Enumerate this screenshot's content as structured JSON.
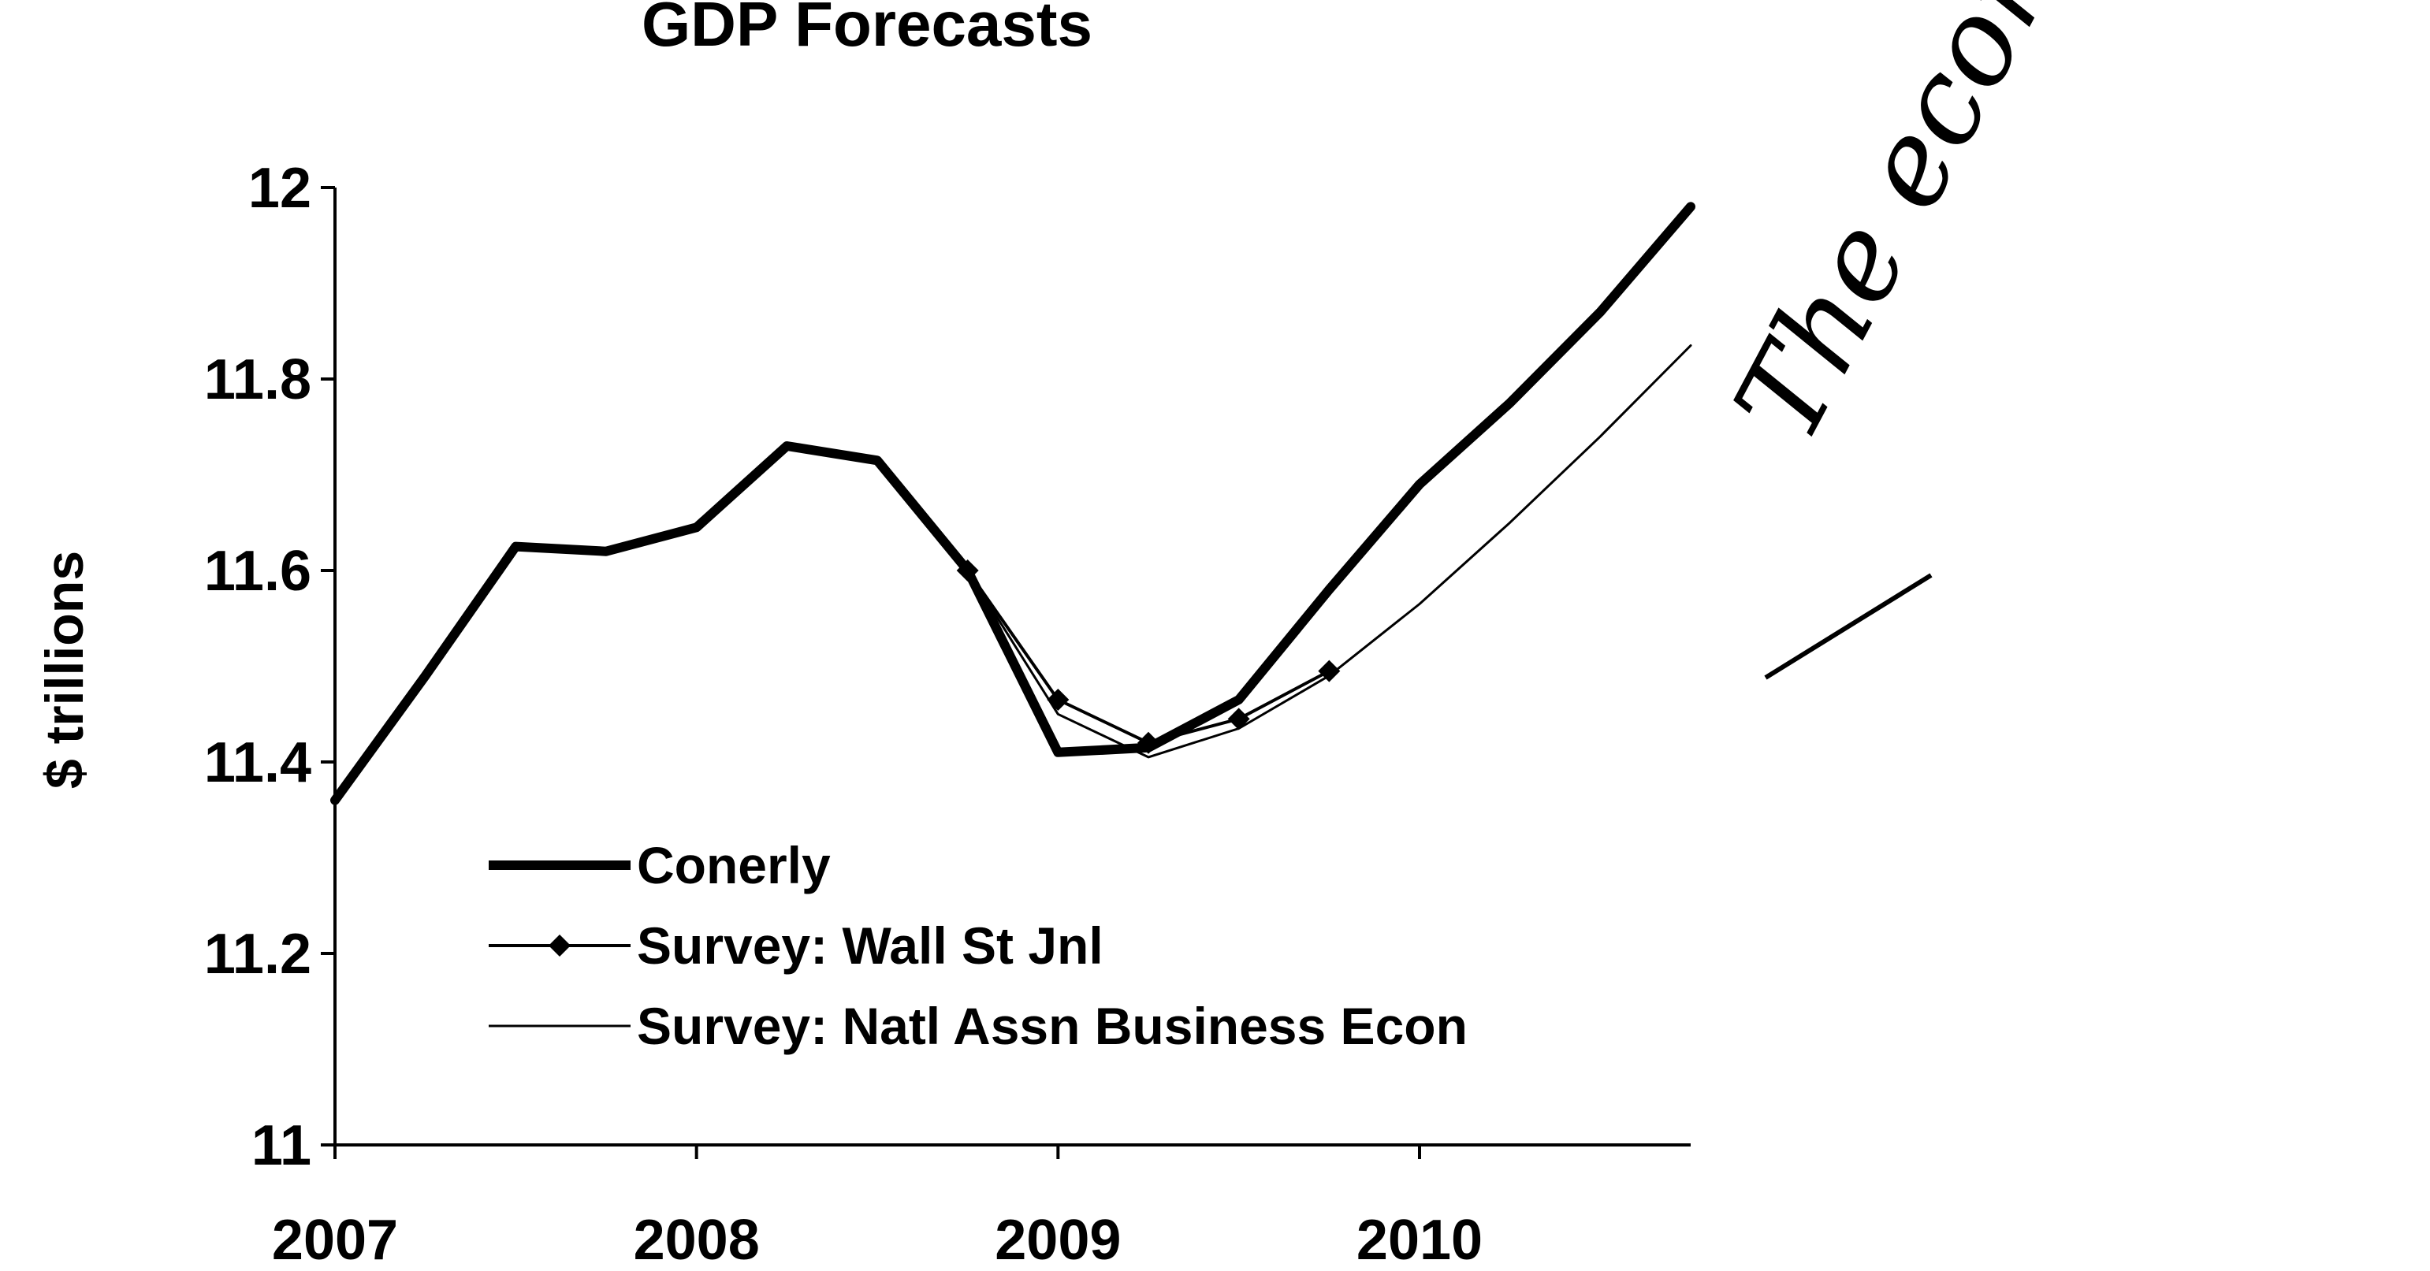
{
  "chart_data": {
    "type": "line",
    "title": "GDP Forecasts",
    "ylabel": "$ trillions",
    "xlabel": "",
    "ylim": [
      11,
      12
    ],
    "yticks": [
      "12",
      "11.8",
      "11.6",
      "11.4",
      "11.2",
      "11"
    ],
    "xticks": [
      "2007",
      "2008",
      "2009",
      "2010"
    ],
    "xlim": [
      2007,
      2010.75
    ],
    "grid": false,
    "legend_position": "lower-left",
    "series": [
      {
        "name": "Conerly",
        "style": "thick",
        "x": [
          2007,
          2007.25,
          2007.5,
          2007.75,
          2008,
          2008.25,
          2008.5,
          2008.75,
          2009,
          2009.25,
          2009.5,
          2009.75,
          2010,
          2010.25,
          2010.5,
          2010.75
        ],
        "y": [
          11.36,
          11.49,
          11.625,
          11.62,
          11.645,
          11.73,
          11.715,
          11.6,
          11.41,
          11.415,
          11.465,
          11.58,
          11.69,
          11.775,
          11.87,
          11.98
        ]
      },
      {
        "name": "Survey: Wall St Jnl",
        "style": "marker",
        "x": [
          2008.75,
          2009,
          2009.25,
          2009.5,
          2009.75
        ],
        "y": [
          11.6,
          11.465,
          11.42,
          11.445,
          11.495
        ]
      },
      {
        "name": "Survey: Natl Assn Business Econ",
        "style": "thin",
        "x": [
          2008.75,
          2009,
          2009.25,
          2009.5,
          2009.75,
          2010,
          2010.25,
          2010.5,
          2010.75
        ],
        "y": [
          11.6,
          11.45,
          11.405,
          11.435,
          11.49,
          11.565,
          11.65,
          11.74,
          11.835
        ]
      }
    ],
    "annotation": "The economy will turn up."
  }
}
